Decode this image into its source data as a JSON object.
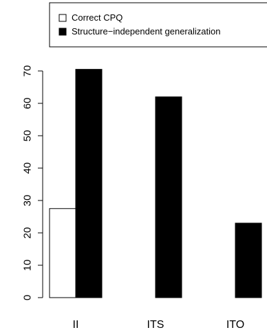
{
  "chart_data": {
    "type": "bar",
    "categories": [
      "II",
      "ITS",
      "ITO"
    ],
    "series": [
      {
        "name": "Correct CPQ",
        "values": [
          27.5,
          0,
          0
        ],
        "color": "#ffffff"
      },
      {
        "name": "Structure−independent generalization",
        "values": [
          70.5,
          62,
          23
        ],
        "color": "#000000"
      }
    ],
    "yticks": [
      0,
      10,
      20,
      30,
      40,
      50,
      60,
      70
    ],
    "ylim": [
      0,
      70
    ],
    "grid": false,
    "legend_position": "top"
  }
}
